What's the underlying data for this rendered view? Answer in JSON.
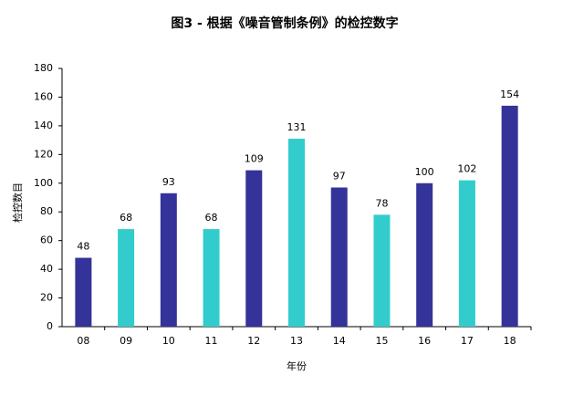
{
  "chart_data": {
    "type": "bar",
    "title": "图3 - 根据《噪音管制条例》的检控数字",
    "x_label": "年份",
    "y_label": "检控数目",
    "categories": [
      "08",
      "09",
      "10",
      "11",
      "12",
      "13",
      "14",
      "15",
      "16",
      "17",
      "18"
    ],
    "values": [
      48,
      68,
      93,
      68,
      109,
      131,
      97,
      78,
      100,
      102,
      154
    ],
    "colors": [
      "#333399",
      "#33cccc",
      "#333399",
      "#33cccc",
      "#333399",
      "#33cccc",
      "#333399",
      "#33cccc",
      "#333399",
      "#33cccc",
      "#333399"
    ],
    "ylim": [
      0,
      180
    ],
    "yticks": [
      0,
      20,
      40,
      60,
      80,
      100,
      120,
      140,
      160,
      180
    ],
    "grid": false
  }
}
